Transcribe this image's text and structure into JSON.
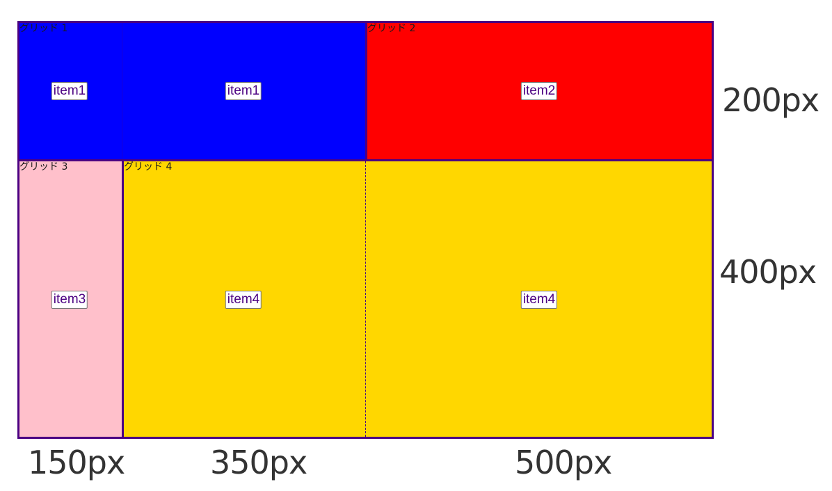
{
  "colors": {
    "border": "#4b0082",
    "area1": "#0000ff",
    "area2": "#ff0000",
    "area3": "#ffc0cb",
    "area4": "#ffd700",
    "item_text": "#4b0082",
    "size_text": "#333333"
  },
  "areas": [
    {
      "name": "グリッド 1",
      "item": "item1"
    },
    {
      "name": "グリッド 2",
      "item": "item2"
    },
    {
      "name": "グリッド 3",
      "item": "item3"
    },
    {
      "name": "グリッド 4",
      "item": "item4"
    }
  ],
  "columns": [
    "150px",
    "350px",
    "500px"
  ],
  "rows": [
    "200px",
    "400px"
  ]
}
